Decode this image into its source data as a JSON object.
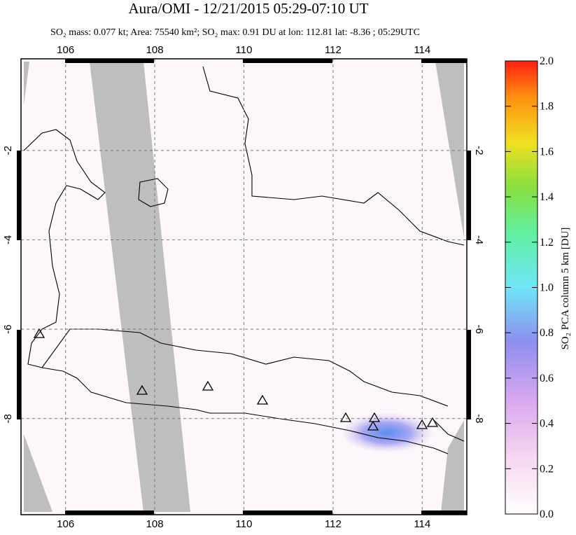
{
  "chart_data": {
    "type": "map",
    "title": "Aura/OMI - 12/21/2015 05:29-07:10 UT",
    "subtitle": "SO₂ mass: 0.077 kt; Area: 75540 km²; SO₂ max: 0.91 DU at lon: 112.81 lat: -8.36 ; 05:29UTC",
    "xlim": [
      105,
      115
    ],
    "ylim": [
      -10.15,
      0.05
    ],
    "xticks": [
      106,
      108,
      110,
      112,
      114
    ],
    "yticks": [
      -2,
      -4,
      -6,
      -8
    ],
    "grid": true,
    "colorbar": {
      "label": "SO₂ PCA column 5 km [DU]",
      "lim": [
        0,
        2
      ],
      "ticks": [
        {
          "value": 0,
          "label": "0.0"
        },
        0.2,
        0.4,
        0.6,
        0.8,
        {
          "value": 1,
          "label": "1.0"
        },
        1.2,
        1.4,
        1.6,
        1.8,
        {
          "value": 2,
          "label": "2.0"
        }
      ]
    }
  }
}
